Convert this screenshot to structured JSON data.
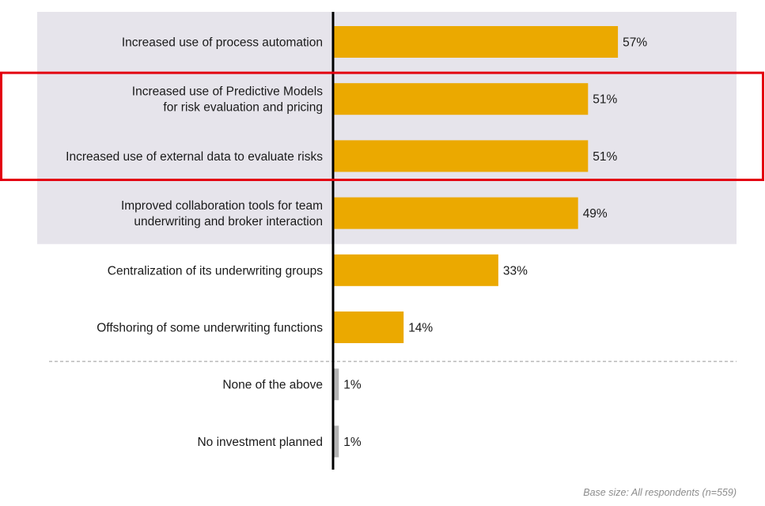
{
  "chart_data": {
    "type": "bar",
    "orientation": "horizontal",
    "title": "",
    "xlabel": "",
    "ylabel": "",
    "xlim": [
      0,
      100
    ],
    "grid": false,
    "categories": [
      [
        "Increased use of process automation"
      ],
      [
        "Increased use of Predictive Models",
        "for risk evaluation  and pricing"
      ],
      [
        "Increased use of external data to evaluate  risks"
      ],
      [
        "Improved collaboration tools for team",
        "underwriting and broker interaction"
      ],
      [
        "Centralization of its underwriting groups"
      ],
      [
        "Offshoring of some underwriting functions"
      ],
      [
        "None of the above"
      ],
      [
        "No investment planned"
      ]
    ],
    "values": [
      57,
      51,
      51,
      49,
      33,
      14,
      1,
      1
    ],
    "value_labels": [
      "57%",
      "51%",
      "51%",
      "49%",
      "33%",
      "14%",
      "1%",
      "1%"
    ],
    "bar_colors": [
      "#EBA900",
      "#EBA900",
      "#EBA900",
      "#EBA900",
      "#EBA900",
      "#EBA900",
      "#B4B4B4",
      "#B4B4B4"
    ],
    "shaded_group": {
      "categories_index_range": [
        0,
        3
      ],
      "color": "#E6E4EB"
    },
    "highlight_box": {
      "categories_index_range": [
        1,
        2
      ],
      "color": "#E3000F"
    },
    "separator": {
      "after_index": 5,
      "style": "dashed",
      "color": "#999999"
    },
    "axis_color": "#000000"
  },
  "footnote": "Base size: All respondents  (n=559)"
}
